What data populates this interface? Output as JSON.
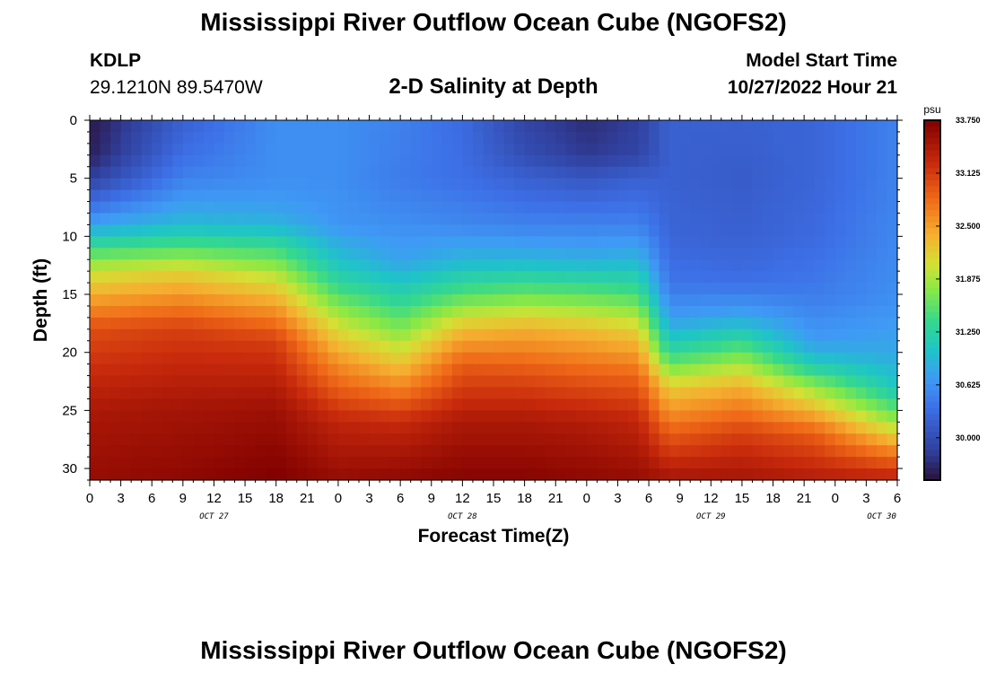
{
  "header": {
    "title": "Mississippi River Outflow Ocean Cube (NGOFS2)",
    "station_id": "KDLP",
    "station_coords": "29.1210N  89.5470W",
    "subtitle": "2-D Salinity at Depth",
    "model_start_label": "Model Start Time",
    "model_start_value": "10/27/2022 Hour 21"
  },
  "footer": {
    "title": "Mississippi River Outflow Ocean Cube (NGOFS2)"
  },
  "chart_data": {
    "type": "heatmap",
    "title": "2-D Salinity at Depth",
    "xlabel": "Forecast Time(Z)",
    "ylabel": "Depth (ft)",
    "x_unit": "hours since Oct 27 00Z",
    "xlim": [
      0,
      78
    ],
    "ylim": [
      0,
      31
    ],
    "y_inverted": true,
    "x_tick_labels": [
      "0",
      "3",
      "6",
      "9",
      "12",
      "15",
      "18",
      "21",
      "0",
      "3",
      "6",
      "9",
      "12",
      "15",
      "18",
      "21",
      "0",
      "3",
      "6",
      "9",
      "12",
      "15",
      "18",
      "21",
      "0",
      "3",
      "6"
    ],
    "day_labels": [
      "OCT 27",
      "OCT 28",
      "OCT 29",
      "OCT 30"
    ],
    "y_ticks": [
      0,
      5,
      10,
      15,
      20,
      25,
      30
    ],
    "colorbar": {
      "unit": "psu",
      "min": 29.5,
      "max": 33.75,
      "labels": [
        "33.750",
        "33.125",
        "32.500",
        "31.875",
        "31.250",
        "30.625",
        "30.000"
      ]
    },
    "profile_columns": [
      {
        "time": 0,
        "depth": [
          0,
          3,
          5,
          7,
          9,
          11,
          13,
          18,
          25,
          31
        ],
        "salinity": [
          29.55,
          29.6,
          29.85,
          30.3,
          30.75,
          31.4,
          32.0,
          33.0,
          33.45,
          33.6
        ]
      },
      {
        "time": 9,
        "depth": [
          0,
          3,
          5,
          7,
          9,
          11,
          13,
          18,
          25,
          31
        ],
        "salinity": [
          30.2,
          30.35,
          30.5,
          30.7,
          30.95,
          31.5,
          32.15,
          33.1,
          33.5,
          33.65
        ]
      },
      {
        "time": 18,
        "depth": [
          0,
          3,
          5,
          7,
          9,
          11,
          14,
          19,
          25,
          31
        ],
        "salinity": [
          30.6,
          30.6,
          30.6,
          30.7,
          30.9,
          31.4,
          32.1,
          33.1,
          33.55,
          33.75
        ]
      },
      {
        "time": 24,
        "depth": [
          0,
          5,
          9,
          12,
          14,
          17,
          21,
          26,
          31
        ],
        "salinity": [
          30.6,
          30.6,
          30.65,
          31.0,
          31.3,
          31.9,
          32.6,
          33.3,
          33.6
        ]
      },
      {
        "time": 30,
        "depth": [
          0,
          5,
          9,
          12,
          15,
          18,
          21,
          26,
          31
        ],
        "salinity": [
          30.5,
          30.45,
          30.6,
          30.75,
          31.2,
          31.7,
          32.25,
          33.25,
          33.65
        ]
      },
      {
        "time": 36,
        "depth": [
          0,
          5,
          9,
          12,
          15,
          18,
          21,
          26,
          31
        ],
        "salinity": [
          30.3,
          30.35,
          30.55,
          30.9,
          31.5,
          32.3,
          32.9,
          33.45,
          33.7
        ]
      },
      {
        "time": 42,
        "depth": [
          0,
          3,
          5,
          9,
          12,
          15,
          18,
          22,
          26,
          31
        ],
        "salinity": [
          29.9,
          30.0,
          30.2,
          30.5,
          30.9,
          31.6,
          32.4,
          33.0,
          33.45,
          33.7
        ]
      },
      {
        "time": 48,
        "depth": [
          0,
          3,
          5,
          9,
          12,
          15,
          18,
          22,
          26,
          31
        ],
        "salinity": [
          29.7,
          29.8,
          30.1,
          30.5,
          30.85,
          31.55,
          32.3,
          32.9,
          33.4,
          33.65
        ]
      },
      {
        "time": 53,
        "depth": [
          0,
          3,
          5,
          9,
          12,
          15,
          18,
          22,
          26,
          31
        ],
        "salinity": [
          29.85,
          29.9,
          30.2,
          30.5,
          30.9,
          31.45,
          32.15,
          32.85,
          33.3,
          33.6
        ]
      },
      {
        "time": 56,
        "depth": [
          0,
          5,
          10,
          14,
          17,
          20,
          23,
          27,
          31
        ],
        "salinity": [
          30.2,
          30.2,
          30.25,
          30.4,
          30.7,
          31.3,
          32.2,
          32.9,
          33.5
        ]
      },
      {
        "time": 63,
        "depth": [
          0,
          5,
          10,
          14,
          17,
          20,
          23,
          27,
          31
        ],
        "salinity": [
          30.2,
          30.15,
          30.2,
          30.35,
          30.8,
          31.6,
          32.4,
          33.1,
          33.5
        ]
      },
      {
        "time": 70,
        "depth": [
          0,
          5,
          10,
          15,
          19,
          21,
          23,
          27,
          31
        ],
        "salinity": [
          30.25,
          30.25,
          30.3,
          30.45,
          30.7,
          31.1,
          31.8,
          32.9,
          33.4
        ]
      },
      {
        "time": 78,
        "depth": [
          0,
          5,
          10,
          15,
          20,
          23,
          26,
          29,
          31
        ],
        "salinity": [
          30.5,
          30.5,
          30.55,
          30.6,
          30.8,
          31.05,
          31.8,
          32.8,
          33.35
        ]
      }
    ]
  }
}
